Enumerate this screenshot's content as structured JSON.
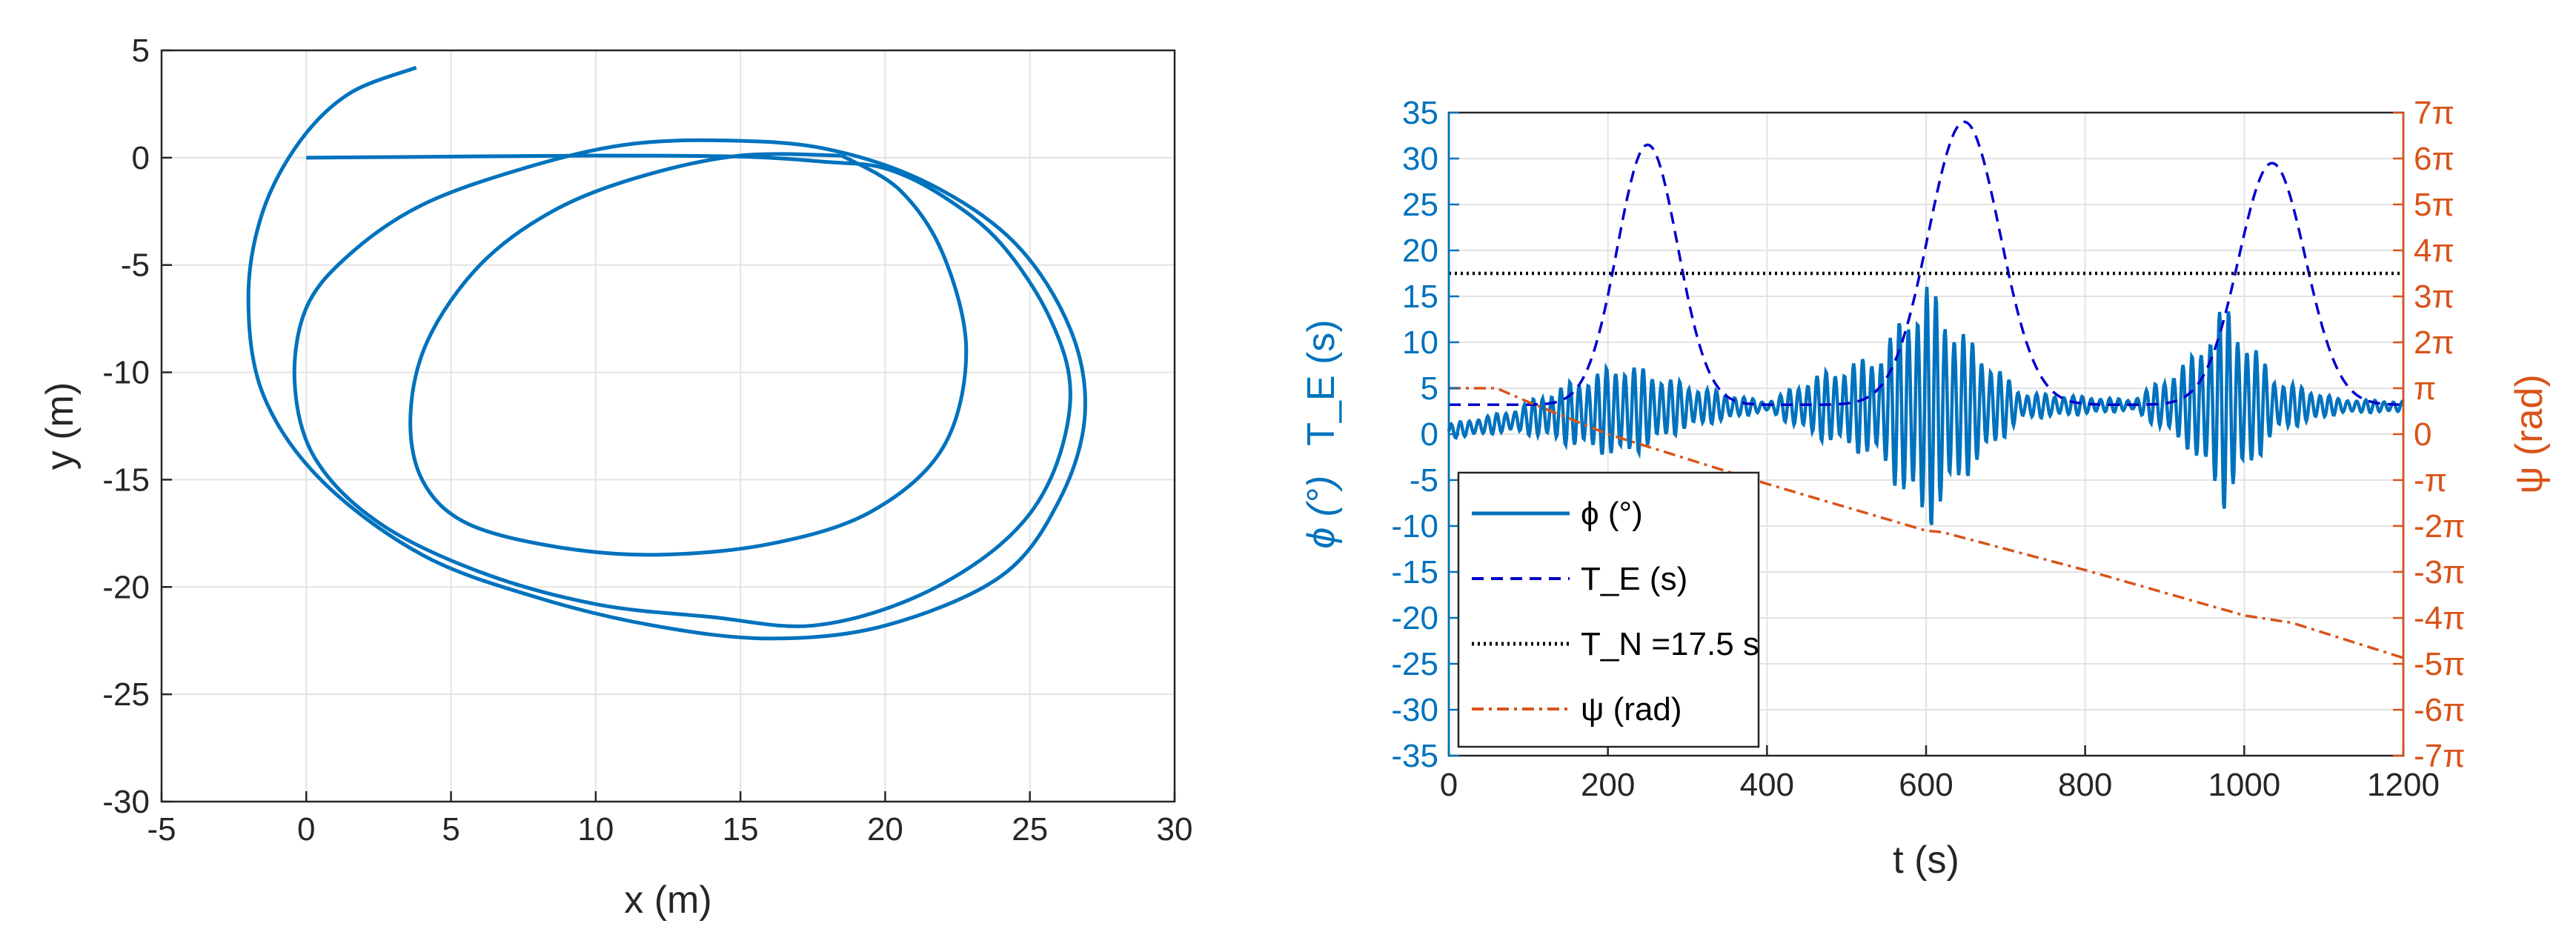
{
  "colors": {
    "blue": "#0072BD",
    "dark_blue": "#0000CD",
    "black": "#000000",
    "orange": "#D95319",
    "grid": "#E3E3E3"
  },
  "chart_data": [
    {
      "id": "trajectory",
      "type": "line",
      "title": "",
      "xlabel": "x (m)",
      "ylabel": "y (m)",
      "xlim": [
        -5,
        30
      ],
      "ylim": [
        -30,
        5
      ],
      "xticks": [
        -5,
        0,
        5,
        10,
        15,
        20,
        25,
        30
      ],
      "yticks": [
        -30,
        -25,
        -20,
        -15,
        -10,
        -5,
        0,
        5
      ],
      "xtick_labels": [
        "-5",
        "0",
        "5",
        "10",
        "15",
        "20",
        "25",
        "30"
      ],
      "ytick_labels": [
        "-30",
        "-25",
        "-20",
        "-15",
        "-10",
        "-5",
        "0",
        "5"
      ],
      "grid": true,
      "series": [
        {
          "name": "trajectory",
          "points": [
            [
              0,
              0
            ],
            [
              5,
              0.05
            ],
            [
              10,
              0.1
            ],
            [
              15,
              0.05
            ],
            [
              18,
              -0.2
            ],
            [
              20,
              -0.5
            ],
            [
              22,
              -1.8
            ],
            [
              24,
              -4
            ],
            [
              25.7,
              -7.5
            ],
            [
              26.4,
              -11
            ],
            [
              25.7,
              -15
            ],
            [
              24,
              -18
            ],
            [
              21,
              -20.5
            ],
            [
              17.5,
              -21.8
            ],
            [
              14,
              -21.4
            ],
            [
              10,
              -20.8
            ],
            [
              6,
              -19.3
            ],
            [
              2.5,
              -17
            ],
            [
              0.3,
              -14
            ],
            [
              -0.4,
              -10.5
            ],
            [
              0,
              -7
            ],
            [
              1.5,
              -4.5
            ],
            [
              4,
              -2.2
            ],
            [
              7.5,
              -0.5
            ],
            [
              11,
              0.6
            ],
            [
              14.5,
              0.8
            ],
            [
              18,
              0.4
            ],
            [
              21.5,
              -1.2
            ],
            [
              24.5,
              -4
            ],
            [
              26.4,
              -8
            ],
            [
              26.9,
              -12
            ],
            [
              26,
              -16
            ],
            [
              24,
              -19.5
            ],
            [
              20,
              -21.8
            ],
            [
              16,
              -22.4
            ],
            [
              12,
              -21.8
            ],
            [
              8,
              -20.5
            ],
            [
              4,
              -18.5
            ],
            [
              0.5,
              -15
            ],
            [
              -1.5,
              -11
            ],
            [
              -2,
              -6.5
            ],
            [
              -1.5,
              -2.5
            ],
            [
              -0.2,
              0.8
            ],
            [
              1.5,
              3
            ],
            [
              3.8,
              4.2
            ]
          ]
        },
        {
          "name": "trajectory-inner",
          "points": [
            [
              18.5,
              0.1
            ],
            [
              20.5,
              -1.5
            ],
            [
              22,
              -4.5
            ],
            [
              22.8,
              -9
            ],
            [
              22,
              -13.5
            ],
            [
              19.5,
              -16.5
            ],
            [
              16,
              -18
            ],
            [
              12,
              -18.5
            ],
            [
              8.5,
              -18.1
            ],
            [
              5.5,
              -17
            ],
            [
              4,
              -15
            ],
            [
              3.6,
              -12
            ],
            [
              4.2,
              -8.5
            ],
            [
              6,
              -5
            ],
            [
              8.5,
              -2.5
            ],
            [
              11.5,
              -0.9
            ],
            [
              15,
              0.1
            ],
            [
              18.5,
              0.1
            ]
          ]
        }
      ]
    },
    {
      "id": "time-series",
      "type": "line",
      "title": "",
      "xlabel": "t (s)",
      "ylabel_left": "ϕ (°)   T_E (s)",
      "ylabel_right": "ψ (rad)",
      "xlim": [
        0,
        1200
      ],
      "ylim_left": [
        -35,
        35
      ],
      "ylim_right": [
        -21.99,
        21.99
      ],
      "xticks": [
        0,
        200,
        400,
        600,
        800,
        1000,
        1200
      ],
      "xtick_labels": [
        "0",
        "200",
        "400",
        "600",
        "800",
        "1000",
        "1200"
      ],
      "yticks_left": [
        -35,
        -30,
        -25,
        -20,
        -15,
        -10,
        -5,
        0,
        5,
        10,
        15,
        20,
        25,
        30,
        35
      ],
      "ytick_labels_left": [
        "-35",
        "-30",
        "-25",
        "-20",
        "-15",
        "-10",
        "-5",
        "0",
        "5",
        "10",
        "15",
        "20",
        "25",
        "30",
        "35"
      ],
      "yticks_right": [
        -21.99,
        -18.85,
        -15.71,
        -12.57,
        -9.42,
        -6.28,
        -3.14,
        0,
        3.14,
        6.28,
        9.42,
        12.57,
        15.71,
        18.85,
        21.99
      ],
      "ytick_labels_right": [
        "-7π",
        "-6π",
        "-5π",
        "-4π",
        "-3π",
        "-2π",
        "-π",
        "0",
        "π",
        "2π",
        "3π",
        "4π",
        "5π",
        "6π",
        "7π"
      ],
      "grid": true,
      "legend": {
        "position": "bottom-left",
        "entries": [
          {
            "label": "ϕ (°)",
            "style": "solid"
          },
          {
            "label": "T_E (s)",
            "style": "dashed"
          },
          {
            "label": "T_N =17.5 s",
            "style": "dotted"
          },
          {
            "label": "ψ (rad)",
            "style": "dashdot"
          }
        ]
      },
      "series": [
        {
          "name": "ϕ (°)",
          "axis": "left",
          "peaks": [
            {
              "t": 0,
              "env": 0.8
            },
            {
              "t": 80,
              "env": 1.2
            },
            {
              "t": 150,
              "env": 3.5
            },
            {
              "t": 220,
              "env": 5.5
            },
            {
              "t": 300,
              "env": 2.5
            },
            {
              "t": 400,
              "env": 0.5
            },
            {
              "t": 460,
              "env": 3.5
            },
            {
              "t": 540,
              "env": 6
            },
            {
              "t": 600,
              "env": 14
            },
            {
              "t": 650,
              "env": 8
            },
            {
              "t": 720,
              "env": 1.5
            },
            {
              "t": 860,
              "env": 0.6
            },
            {
              "t": 930,
              "env": 5
            },
            {
              "t": 975,
              "env": 11.5
            },
            {
              "t": 1040,
              "env": 3
            },
            {
              "t": 1120,
              "env": 0.8
            },
            {
              "t": 1200,
              "env": 0.6
            }
          ],
          "mean": [
            [
              0,
              0.3
            ],
            [
              120,
              2
            ],
            [
              300,
              3
            ],
            [
              600,
              3
            ],
            [
              900,
              3.2
            ],
            [
              1200,
              3
            ]
          ]
        },
        {
          "name": "T_E (s)",
          "axis": "left",
          "base": 3.2,
          "peak_list": [
            {
              "t": 250,
              "value": 31.5,
              "width": 38
            },
            {
              "t": 648,
              "value": 34,
              "width": 45
            },
            {
              "t": 1035,
              "value": 29.5,
              "width": 42
            }
          ]
        },
        {
          "name": "T_N =17.5 s",
          "axis": "left",
          "constant": 17.5
        },
        {
          "name": "ψ (rad)",
          "axis": "right",
          "points": [
            [
              0,
              3.14
            ],
            [
              60,
              3.14
            ],
            [
              100,
              2.2
            ],
            [
              200,
              0
            ],
            [
              400,
              -3.4
            ],
            [
              600,
              -6.6
            ],
            [
              620,
              -6.7
            ],
            [
              800,
              -9.3
            ],
            [
              1000,
              -12.4
            ],
            [
              1060,
              -12.9
            ],
            [
              1200,
              -15.3
            ]
          ]
        }
      ]
    }
  ]
}
